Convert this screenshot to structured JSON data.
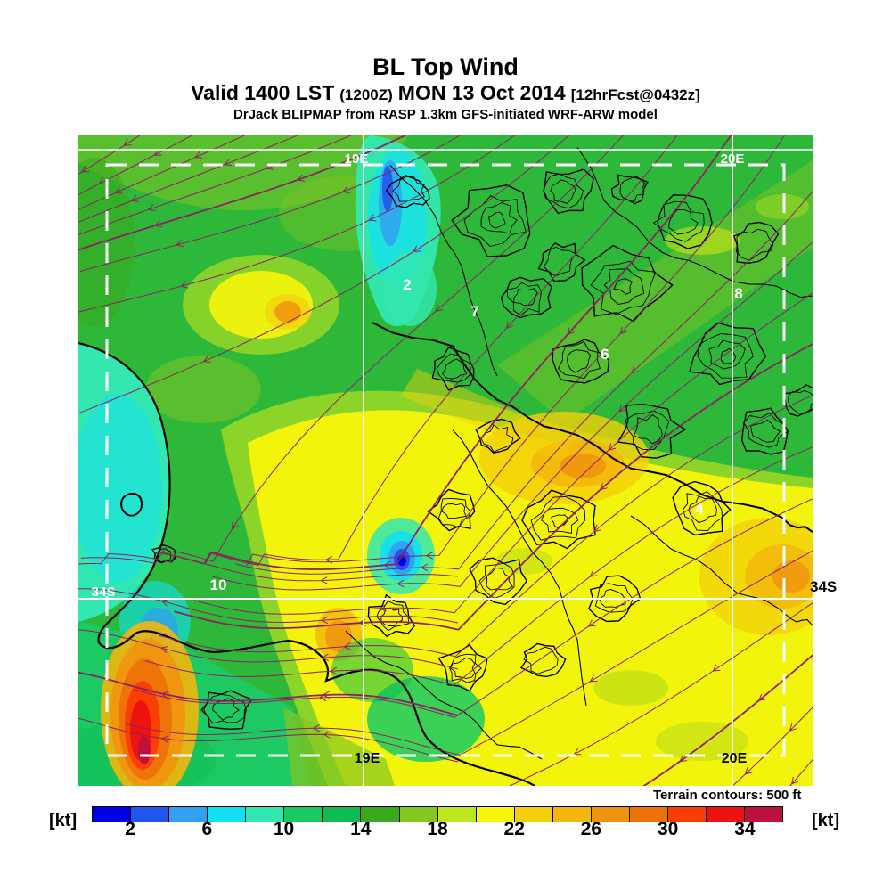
{
  "header": {
    "title": "BL Top Wind",
    "valid": {
      "prefix": "Valid 1400 LST",
      "zulu": "(1200Z)",
      "date": "MON 13 Oct 2014",
      "fcst": "[12hrFcst@0432z]"
    },
    "model_line": "DrJack BLIPMAP from RASP 1.3km GFS-initiated WRF-ARW model"
  },
  "map": {
    "colors": {
      "base_green": "#2eb83a",
      "streamline": "#8e2063",
      "terrain_contour": "#000000",
      "coastline": "#000000",
      "grid_line": "#ffffff"
    },
    "grid_labels": {
      "top": [
        {
          "text": "19E"
        },
        {
          "text": "20E"
        }
      ],
      "bottom": [
        {
          "text": "19E"
        },
        {
          "text": "20E"
        }
      ],
      "left": "34S",
      "right": "34S"
    },
    "annotations": [
      {
        "text": "2"
      },
      {
        "text": "7"
      },
      {
        "text": "6"
      },
      {
        "text": "8"
      },
      {
        "text": "4"
      },
      {
        "text": "10"
      }
    ]
  },
  "footer": {
    "terrain_note": "Terrain contours: 500 ft",
    "units_left": "[kt]",
    "units_right": "[kt]"
  },
  "chart_data": {
    "type": "heatmap",
    "title": "BL Top Wind",
    "parameter": "Boundary layer top wind speed",
    "valid": "1400 LST (1200Z) MON 13 Oct 2014",
    "forecast_init": "12hrFcst@0432z",
    "model": "DrJack BLIPMAP from RASP 1.3km GFS-initiated WRF-ARW model",
    "units": "kt",
    "terrain_contour_interval": "500 ft",
    "colorbar": {
      "min": 0,
      "max": 36,
      "step": 2,
      "tick_labels": [
        "2",
        "6",
        "10",
        "14",
        "18",
        "22",
        "26",
        "30",
        "34"
      ],
      "colors": [
        "#0000e6",
        "#2255ee",
        "#31a0f0",
        "#11dff2",
        "#33e8b0",
        "#1bc964",
        "#0ebd52",
        "#38a81e",
        "#84c622",
        "#bfe51f",
        "#f6f50b",
        "#f3cf0a",
        "#f2b60d",
        "#f0930f",
        "#ed7209",
        "#fa3c05",
        "#ee1111",
        "#bb1040"
      ]
    },
    "map_grid": {
      "meridians": [
        "19E",
        "20E"
      ],
      "parallels": [
        "34S"
      ]
    },
    "spot_wind_values_kt": [
      2,
      7,
      6,
      8,
      4,
      10
    ]
  }
}
